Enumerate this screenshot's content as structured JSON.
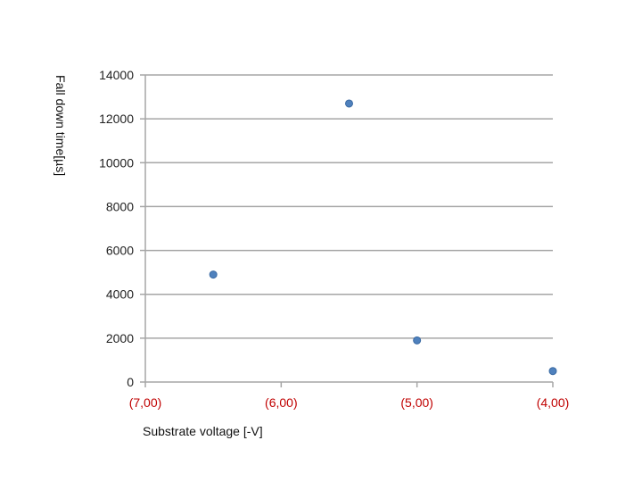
{
  "chart_data": {
    "type": "scatter",
    "title": "",
    "xlabel": "Substrate voltage [-V]",
    "ylabel": "Fall down time[µs]",
    "x_ticks": [
      {
        "value": -7,
        "label": "(7,00)"
      },
      {
        "value": -6,
        "label": "(6,00)"
      },
      {
        "value": -5,
        "label": "(5,00)"
      },
      {
        "value": -4,
        "label": "(4,00)"
      }
    ],
    "y_ticks": [
      0,
      2000,
      4000,
      6000,
      8000,
      10000,
      12000,
      14000
    ],
    "xlim": [
      -7,
      -4
    ],
    "ylim": [
      0,
      14000
    ],
    "grid": "horizontal",
    "series": [
      {
        "points": [
          {
            "x": -6.5,
            "y": 4900
          },
          {
            "x": -5.5,
            "y": 12700
          },
          {
            "x": -5.0,
            "y": 1900
          },
          {
            "x": -4.0,
            "y": 500
          }
        ]
      }
    ],
    "colors": {
      "marker": "#4f81bd",
      "marker_edge": "#3a6aa3",
      "grid": "#a6a6a6",
      "x_tick_label": "#c00000",
      "y_tick_label": "#222222"
    }
  }
}
